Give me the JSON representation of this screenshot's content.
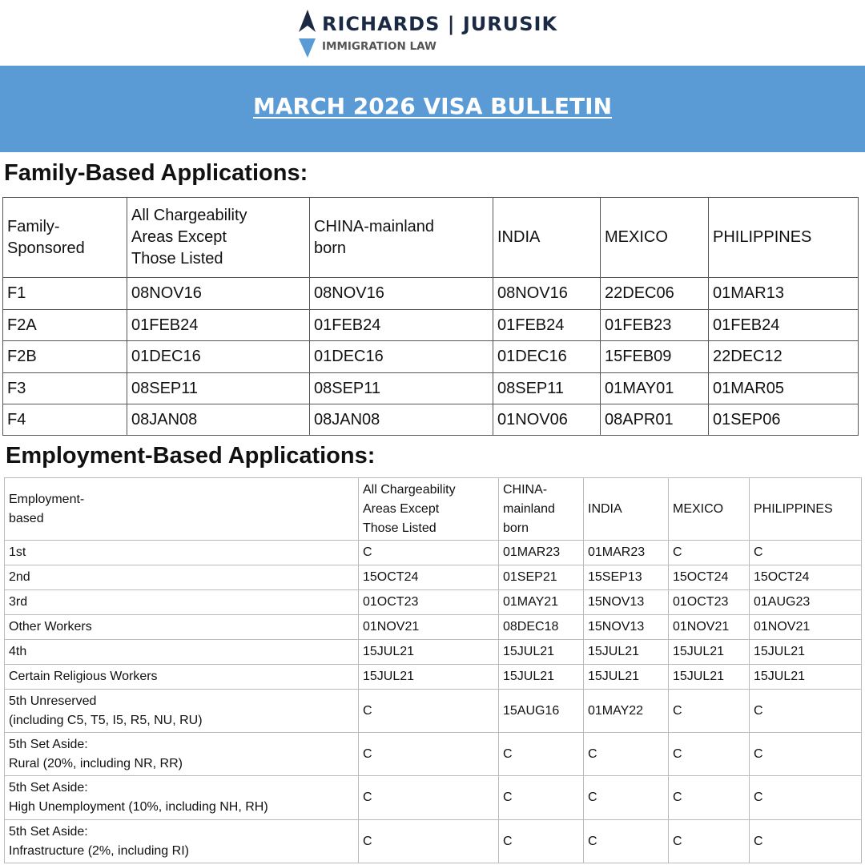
{
  "header": {
    "logo_name": "RICHARDS | JURUSIK",
    "logo_subtitle": "IMMIGRATION LAW",
    "title": "MARCH 2026 VISA BULLETIN"
  },
  "family": {
    "heading": "Family-Based Applications:",
    "columns": [
      "Family-\nSponsored",
      "All Chargeability\nAreas Except\nThose Listed",
      "CHINA-mainland\nborn",
      "INDIA",
      "MEXICO",
      "PHILIPPINES"
    ],
    "rows": [
      [
        "F1",
        "08NOV16",
        "08NOV16",
        "08NOV16",
        "22DEC06",
        "01MAR13"
      ],
      [
        "F2A",
        "01FEB24",
        "01FEB24",
        "01FEB24",
        "01FEB23",
        "01FEB24"
      ],
      [
        "F2B",
        "01DEC16",
        "01DEC16",
        "01DEC16",
        "15FEB09",
        "22DEC12"
      ],
      [
        "F3",
        "08SEP11",
        "08SEP11",
        "08SEP11",
        "01MAY01",
        "01MAR05"
      ],
      [
        "F4",
        "08JAN08",
        "08JAN08",
        "01NOV06",
        "08APR01",
        "01SEP06"
      ]
    ]
  },
  "employment": {
    "heading": "Employment-Based Applications:",
    "columns": [
      "Employment-\nbased",
      "All Chargeability\nAreas Except\nThose Listed",
      "CHINA-\nmainland\nborn",
      "INDIA",
      "MEXICO",
      "PHILIPPINES"
    ],
    "rows": [
      [
        "1st",
        "C",
        "01MAR23",
        "01MAR23",
        "C",
        "C"
      ],
      [
        "2nd",
        "15OCT24",
        "01SEP21",
        "15SEP13",
        "15OCT24",
        "15OCT24"
      ],
      [
        "3rd",
        "01OCT23",
        "01MAY21",
        "15NOV13",
        "01OCT23",
        "01AUG23"
      ],
      [
        "Other Workers",
        "01NOV21",
        "08DEC18",
        "15NOV13",
        "01NOV21",
        "01NOV21"
      ],
      [
        "4th",
        "15JUL21",
        "15JUL21",
        "15JUL21",
        "15JUL21",
        "15JUL21"
      ],
      [
        "Certain Religious Workers",
        "15JUL21",
        "15JUL21",
        "15JUL21",
        "15JUL21",
        "15JUL21"
      ],
      [
        "5th Unreserved\n(including C5, T5, I5, R5, NU, RU)",
        "C",
        "15AUG16",
        "01MAY22",
        "C",
        "C"
      ],
      [
        "5th Set Aside:\nRural (20%, including NR, RR)",
        "C",
        "C",
        "C",
        "C",
        "C"
      ],
      [
        "5th Set Aside:\nHigh Unemployment (10%, including NH, RH)",
        "C",
        "C",
        "C",
        "C",
        "C"
      ],
      [
        "5th Set Aside:\nInfrastructure (2%, including RI)",
        "C",
        "C",
        "C",
        "C",
        "C"
      ]
    ]
  }
}
